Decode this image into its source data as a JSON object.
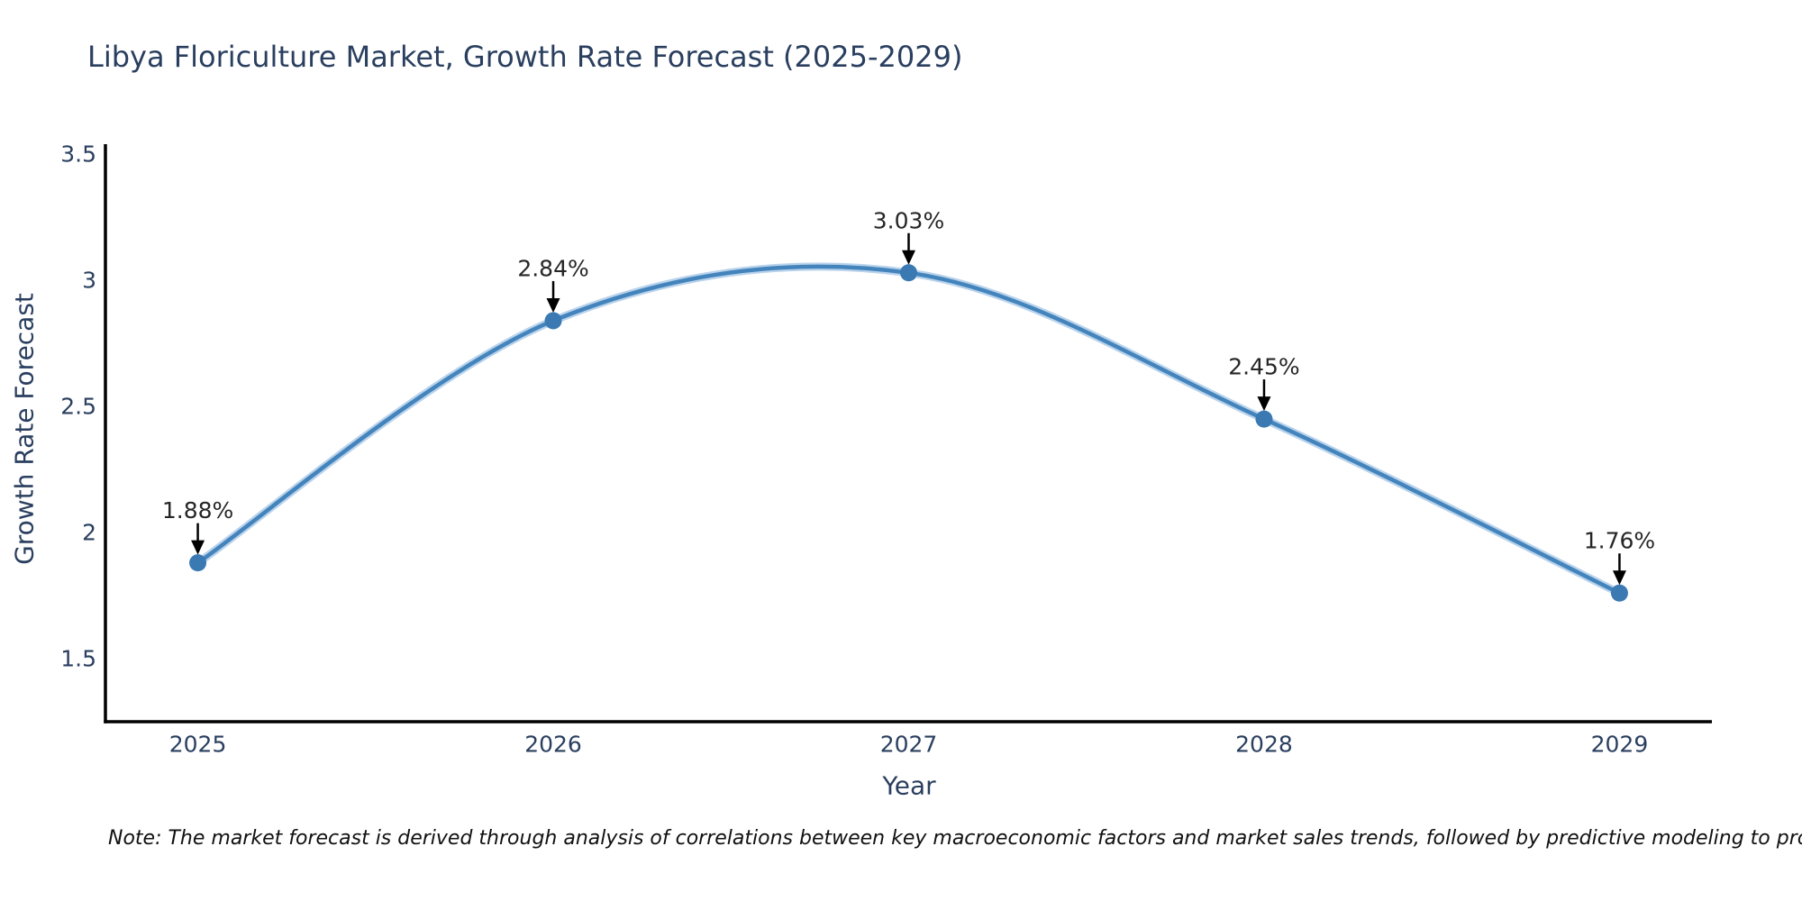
{
  "title": "Libya Floriculture Market, Growth Rate Forecast (2025-2029)",
  "note": "Note: The market forecast is derived through analysis of correlations between key macroeconomic factors and market sales trends, followed by predictive modeling to project future sales",
  "chart_data": {
    "type": "line",
    "title": "Libya Floriculture Market, Growth Rate Forecast (2025-2029)",
    "xlabel": "Year",
    "ylabel": "Growth Rate Forecast",
    "x": [
      2025,
      2026,
      2027,
      2028,
      2029
    ],
    "values": [
      1.88,
      2.84,
      3.03,
      2.45,
      1.76
    ],
    "point_labels": [
      "1.88%",
      "2.84%",
      "3.03%",
      "2.45%",
      "1.76%"
    ],
    "xtick_labels": [
      "2025",
      "2026",
      "2027",
      "2028",
      "2029"
    ],
    "ytick_values": [
      1.5,
      2,
      2.5,
      3,
      3.5
    ],
    "ytick_labels": [
      "1.5",
      "2",
      "2.5",
      "3",
      "3.5"
    ],
    "xlim": [
      2024.74,
      2029.26
    ],
    "ylim": [
      1.25,
      3.54
    ],
    "grid": false,
    "legend": "none",
    "smooth_curve": true,
    "colors": {
      "line": "#4484bc",
      "line_halo": "#b9d3ec",
      "marker": "#3b79b3",
      "axis": "#000000",
      "tick_text": "#2a3f5f",
      "annotation_text": "#262626",
      "arrow": "#000000"
    }
  }
}
